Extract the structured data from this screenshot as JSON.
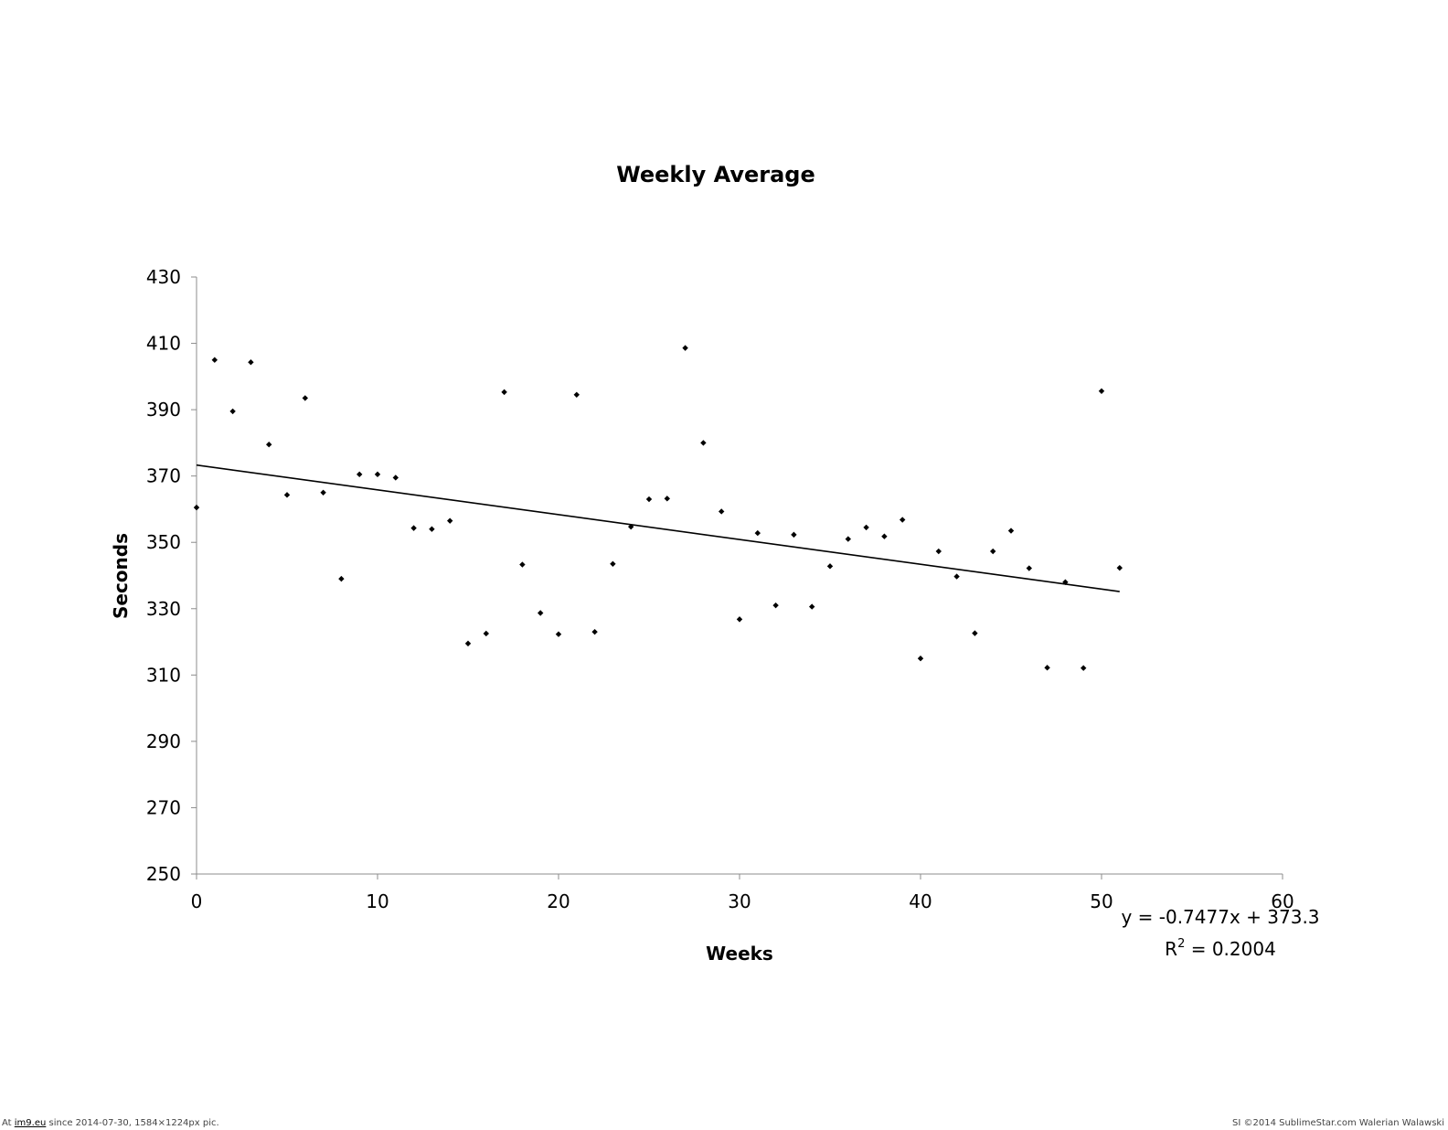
{
  "chart_data": {
    "type": "scatter",
    "title": "Weekly Average",
    "xlabel": "Weeks",
    "ylabel": "Seconds",
    "xlim": [
      0,
      60
    ],
    "ylim": [
      250,
      430
    ],
    "x_ticks": [
      0,
      10,
      20,
      30,
      40,
      50,
      60
    ],
    "y_ticks": [
      250,
      270,
      290,
      310,
      330,
      350,
      370,
      390,
      410,
      430
    ],
    "grid": false,
    "legend": false,
    "series": [
      {
        "marker": "diamond",
        "color": "#000000",
        "points": [
          [
            0,
            360.5
          ],
          [
            1,
            405
          ],
          [
            2,
            389.5
          ],
          [
            3,
            404.3
          ],
          [
            4,
            379.5
          ],
          [
            5,
            364.3
          ],
          [
            6,
            393.5
          ],
          [
            7,
            365
          ],
          [
            8,
            339
          ],
          [
            9,
            370.5
          ],
          [
            10,
            370.5
          ],
          [
            11,
            369.5
          ],
          [
            12,
            354.3
          ],
          [
            13,
            354
          ],
          [
            14,
            356.5
          ],
          [
            15,
            319.5
          ],
          [
            16,
            322.5
          ],
          [
            17,
            395.3
          ],
          [
            18,
            343.3
          ],
          [
            19,
            328.7
          ],
          [
            20,
            322.3
          ],
          [
            21,
            394.5
          ],
          [
            22,
            323
          ],
          [
            23,
            343.5
          ],
          [
            24,
            354.7
          ],
          [
            25,
            363
          ],
          [
            26,
            363.2
          ],
          [
            27,
            408.6
          ],
          [
            28,
            380
          ],
          [
            29,
            359.3
          ],
          [
            30,
            326.8
          ],
          [
            31,
            352.8
          ],
          [
            32,
            331
          ],
          [
            33,
            352.3
          ],
          [
            34,
            330.6
          ],
          [
            35,
            342.8
          ],
          [
            36,
            351
          ],
          [
            37,
            354.5
          ],
          [
            38,
            351.8
          ],
          [
            39,
            356.8
          ],
          [
            40,
            315
          ],
          [
            41,
            347.3
          ],
          [
            42,
            339.7
          ],
          [
            43,
            322.6
          ],
          [
            44,
            347.3
          ],
          [
            45,
            353.5
          ],
          [
            46,
            342.2
          ],
          [
            47,
            312.2
          ],
          [
            48,
            338
          ],
          [
            49,
            312.1
          ],
          [
            50,
            395.6
          ],
          [
            51,
            342.3
          ]
        ]
      }
    ],
    "trendline": {
      "type": "linear",
      "slope": -0.7477,
      "intercept": 373.3,
      "x_range": [
        0,
        51
      ],
      "color": "#000000",
      "equation_label": "y = -0.7477x + 373.3",
      "r2_prefix": "R",
      "r2_superscript": "2",
      "r2_suffix": " = 0.2004"
    }
  },
  "footer": {
    "left_prefix": "At ",
    "left_link": "im9.eu",
    "left_suffix": " since 2014-07-30, 1584×1224px pic.",
    "right": "SI ©2014 SublimeStar.com Walerian Walawski"
  }
}
